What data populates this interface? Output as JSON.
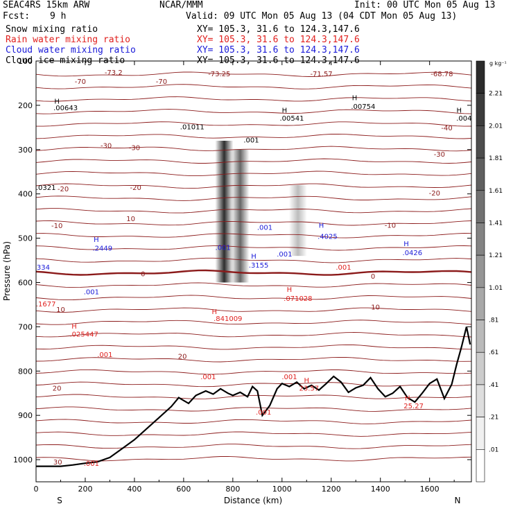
{
  "header": {
    "model": "SEAC4RS 15km ARW",
    "center": "NCAR/MMM",
    "init": "Init: 00 UTC Mon 05 Aug 13",
    "fcst_label": "Fcst:",
    "fcst_value": "9 h",
    "valid": "Valid: 09 UTC Mon 05 Aug 13 (04 CDT Mon 05 Aug 13)",
    "fields": [
      {
        "name": "Snow mixing ratio",
        "xy": "XY= 105.3, 31.6 to 124.3,147.6",
        "color": "#000000"
      },
      {
        "name": "Rain water mixing ratio",
        "xy": "XY= 105.3, 31.6 to 124.3,147.6",
        "color": "#e0201e"
      },
      {
        "name": "Cloud water mixing ratio",
        "xy": "XY= 105.3, 31.6 to 124.3,147.6",
        "color": "#1a1ad8"
      },
      {
        "name": "Cloud ice mixing ratio",
        "xy": "XY= 105.3, 31.6 to 124.3,147.6",
        "color": "#000000"
      }
    ]
  },
  "chart_data": {
    "type": "heatmap",
    "xlabel": "Distance (km)",
    "ylabel": "Pressure (hPa)",
    "xlim": [
      0,
      1770
    ],
    "ylim": [
      100,
      1050
    ],
    "x_ticks": [
      0,
      200,
      400,
      600,
      800,
      1000,
      1200,
      1400,
      1600
    ],
    "y_ticks": [
      100,
      200,
      300,
      400,
      500,
      600,
      700,
      800,
      900,
      1000
    ],
    "y_tick_labels": [
      "100",
      "200",
      "300",
      "400",
      "500",
      "600",
      "700",
      "800",
      "900",
      "1000"
    ],
    "end_labels": {
      "left": "S",
      "right": "N"
    },
    "colorbar": {
      "unit": "g kg⁻¹",
      "labels": [
        "2.21",
        "2.01",
        "1.81",
        "1.61",
        "1.41",
        "1.21",
        "1.01",
        ".81",
        ".61",
        ".41",
        ".21",
        ".01"
      ],
      "colors": [
        "#2b2b2b",
        "#3c3c3c",
        "#4d4d4d",
        "#5f5f5f",
        "#717171",
        "#838383",
        "#959595",
        "#a8a8a8",
        "#bababa",
        "#cccccc",
        "#dedede",
        "#f0f0f0",
        "#ffffff"
      ]
    },
    "snow_shading": [
      {
        "x": 765,
        "p_top": 280,
        "p_bottom": 600,
        "value": 2.2
      },
      {
        "x": 830,
        "p_top": 300,
        "p_bottom": 600,
        "value": 1.6
      },
      {
        "x": 1065,
        "p_top": 380,
        "p_bottom": 540,
        "value": 0.7
      }
    ],
    "temperature_isotherms": {
      "color": "#8b1a1a",
      "labels": [
        {
          "text": "-70",
          "x": 180,
          "p": 145
        },
        {
          "text": "-73.2",
          "x": 315,
          "p": 125
        },
        {
          "text": "-70",
          "x": 510,
          "p": 145
        },
        {
          "text": "-73.25",
          "x": 745,
          "p": 128
        },
        {
          "text": "-71.57",
          "x": 1160,
          "p": 128
        },
        {
          "text": "-68.78",
          "x": 1650,
          "p": 128
        },
        {
          "text": "-40",
          "x": 1670,
          "p": 250
        },
        {
          "text": "-30",
          "x": 285,
          "p": 290
        },
        {
          "text": "-30",
          "x": 400,
          "p": 295
        },
        {
          "text": "-30",
          "x": 1640,
          "p": 310
        },
        {
          "text": "-20",
          "x": 110,
          "p": 388
        },
        {
          "text": "-20",
          "x": 405,
          "p": 385
        },
        {
          "text": "-20",
          "x": 1620,
          "p": 397
        },
        {
          "text": "-10",
          "x": 85,
          "p": 471
        },
        {
          "text": "10",
          "x": 385,
          "p": 455
        },
        {
          "text": "-10",
          "x": 1440,
          "p": 470
        },
        {
          "text": "0",
          "x": 435,
          "p": 580
        },
        {
          "text": "0",
          "x": 1370,
          "p": 585
        },
        {
          "text": "10",
          "x": 100,
          "p": 660
        },
        {
          "text": "10",
          "x": 1380,
          "p": 655
        },
        {
          "text": "20",
          "x": 595,
          "p": 766
        },
        {
          "text": "20",
          "x": 85,
          "p": 838
        },
        {
          "text": "30",
          "x": 88,
          "p": 1005
        }
      ]
    },
    "contour_labels": [
      {
        "text": "H",
        "x": 85,
        "p": 190,
        "color": "#000000"
      },
      {
        "text": ".00643",
        "x": 120,
        "p": 205,
        "color": "#000000"
      },
      {
        "text": ".01011",
        "x": 635,
        "p": 248,
        "color": "#000000"
      },
      {
        "text": ".001",
        "x": 875,
        "p": 278,
        "color": "#000000"
      },
      {
        "text": "H",
        "x": 1010,
        "p": 210,
        "color": "#000000"
      },
      {
        "text": ".00541",
        "x": 1040,
        "p": 228,
        "color": "#000000"
      },
      {
        "text": "H",
        "x": 1295,
        "p": 182,
        "color": "#000000"
      },
      {
        "text": ".00754",
        "x": 1330,
        "p": 202,
        "color": "#000000"
      },
      {
        "text": "H",
        "x": 1720,
        "p": 210,
        "color": "#000000"
      },
      {
        "text": ".004",
        "x": 1740,
        "p": 228,
        "color": "#000000"
      },
      {
        "text": ".0321",
        "x": 40,
        "p": 385,
        "color": "#000000"
      },
      {
        "text": "H",
        "x": 245,
        "p": 502,
        "color": "#1a1ad8"
      },
      {
        "text": ".2449",
        "x": 270,
        "p": 522,
        "color": "#1a1ad8"
      },
      {
        "text": ".001",
        "x": 760,
        "p": 520,
        "color": "#1a1ad8"
      },
      {
        "text": ".001",
        "x": 930,
        "p": 475,
        "color": "#1a1ad8"
      },
      {
        "text": "H",
        "x": 885,
        "p": 540,
        "color": "#1a1ad8"
      },
      {
        "text": ".3155",
        "x": 905,
        "p": 560,
        "color": "#1a1ad8"
      },
      {
        "text": ".001",
        "x": 1010,
        "p": 535,
        "color": "#1a1ad8"
      },
      {
        "text": "H",
        "x": 1160,
        "p": 470,
        "color": "#1a1ad8"
      },
      {
        "text": ".4025",
        "x": 1185,
        "p": 495,
        "color": "#1a1ad8"
      },
      {
        "text": "H",
        "x": 1505,
        "p": 512,
        "color": "#1a1ad8"
      },
      {
        "text": ".0426",
        "x": 1530,
        "p": 532,
        "color": "#1a1ad8"
      },
      {
        "text": ".334",
        "x": 25,
        "p": 565,
        "color": "#1a1ad8"
      },
      {
        "text": ".001",
        "x": 225,
        "p": 620,
        "color": "#1a1ad8"
      },
      {
        "text": ".001",
        "x": 1250,
        "p": 565,
        "color": "#e0201e"
      },
      {
        "text": ".1677",
        "x": 40,
        "p": 648,
        "color": "#e0201e"
      },
      {
        "text": "H",
        "x": 155,
        "p": 698,
        "color": "#e0201e"
      },
      {
        "text": ".025447",
        "x": 195,
        "p": 716,
        "color": "#e0201e"
      },
      {
        "text": "H",
        "x": 725,
        "p": 665,
        "color": "#e0201e"
      },
      {
        "text": ".841009",
        "x": 780,
        "p": 681,
        "color": "#e0201e"
      },
      {
        "text": "H",
        "x": 1030,
        "p": 615,
        "color": "#e0201e"
      },
      {
        "text": ".071028",
        "x": 1065,
        "p": 635,
        "color": "#e0201e"
      },
      {
        "text": ".001",
        "x": 280,
        "p": 762,
        "color": "#e0201e"
      },
      {
        "text": ".001",
        "x": 700,
        "p": 812,
        "color": "#e0201e"
      },
      {
        "text": ".001",
        "x": 1030,
        "p": 812,
        "color": "#e0201e"
      },
      {
        "text": "H",
        "x": 1100,
        "p": 820,
        "color": "#e0201e"
      },
      {
        "text": "23.57",
        "x": 1110,
        "p": 838,
        "color": "#e0201e"
      },
      {
        "text": ".001",
        "x": 925,
        "p": 892,
        "color": "#e0201e"
      },
      {
        "text": "H",
        "x": 1510,
        "p": 860,
        "color": "#e0201e"
      },
      {
        "text": "25.27",
        "x": 1535,
        "p": 878,
        "color": "#e0201e"
      },
      {
        "text": ".001",
        "x": 225,
        "p": 1008,
        "color": "#e0201e"
      }
    ],
    "terrain_surface": {
      "x": [
        0,
        100,
        150,
        200,
        250,
        300,
        350,
        400,
        450,
        500,
        550,
        580,
        620,
        650,
        690,
        720,
        750,
        780,
        800,
        830,
        860,
        880,
        900,
        920,
        950,
        980,
        1000,
        1030,
        1060,
        1090,
        1120,
        1150,
        1180,
        1210,
        1240,
        1270,
        1300,
        1330,
        1360,
        1390,
        1420,
        1450,
        1480,
        1510,
        1540,
        1570,
        1600,
        1630,
        1660,
        1690,
        1710,
        1730,
        1750,
        1765
      ],
      "p": [
        1015,
        1015,
        1012,
        1008,
        1005,
        995,
        975,
        955,
        930,
        905,
        880,
        860,
        873,
        855,
        845,
        852,
        840,
        850,
        855,
        848,
        858,
        835,
        845,
        900,
        878,
        840,
        828,
        835,
        825,
        840,
        832,
        843,
        828,
        812,
        825,
        848,
        838,
        832,
        815,
        840,
        858,
        850,
        835,
        860,
        870,
        850,
        828,
        818,
        862,
        830,
        785,
        745,
        700,
        740
      ]
    }
  }
}
